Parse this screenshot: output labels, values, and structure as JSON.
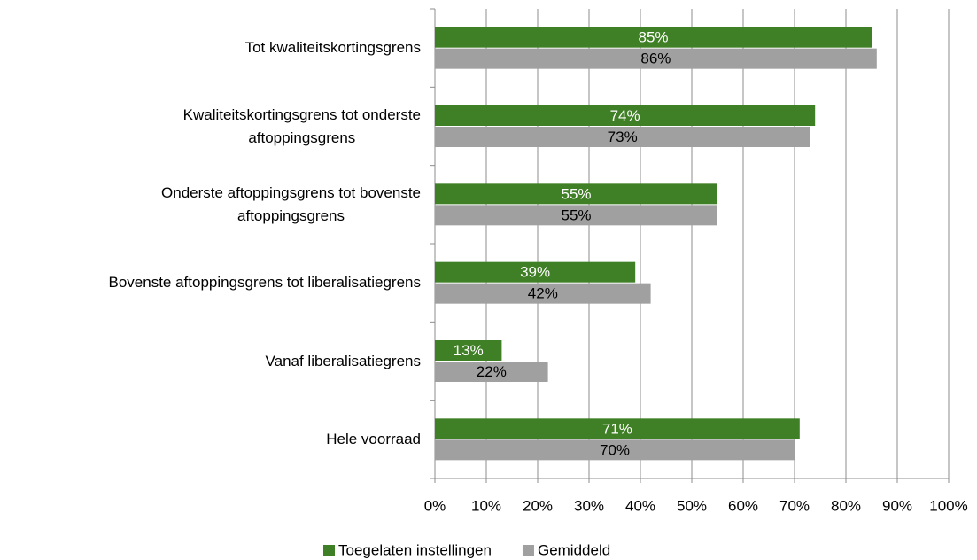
{
  "chart_data": {
    "type": "hbar",
    "categories": [
      "Tot kwaliteitskortingsgrens",
      "Kwaliteitskortingsgrens tot onderste\naftoppingsgrens",
      "Onderste aftoppingsgrens tot bovenste\naftoppingsgrens",
      "Bovenste aftoppingsgrens tot liberalisatiegrens",
      "Vanaf liberalisatiegrens",
      "Hele voorraad"
    ],
    "series": [
      {
        "name": "Toegelaten instellingen",
        "color": "#3f7f25",
        "label_color": "#ffffff",
        "values": [
          85,
          74,
          55,
          39,
          13,
          71
        ],
        "value_labels": [
          "85%",
          "74%",
          "55%",
          "39%",
          "13%",
          "71%"
        ]
      },
      {
        "name": "Gemiddeld",
        "color": "#a0a0a0",
        "label_color": "#000000",
        "values": [
          86,
          73,
          55,
          42,
          22,
          70
        ],
        "value_labels": [
          "86%",
          "73%",
          "55%",
          "42%",
          "22%",
          "70%"
        ]
      }
    ],
    "xlim": [
      0,
      100
    ],
    "xticks": [
      {
        "value": 0,
        "label": "0%"
      },
      {
        "value": 10,
        "label": "10%"
      },
      {
        "value": 20,
        "label": "20%"
      },
      {
        "value": 30,
        "label": "30%"
      },
      {
        "value": 40,
        "label": "40%"
      },
      {
        "value": 50,
        "label": "50%"
      },
      {
        "value": 60,
        "label": "60%"
      },
      {
        "value": 70,
        "label": "70%"
      },
      {
        "value": 80,
        "label": "80%"
      },
      {
        "value": 90,
        "label": "90%"
      },
      {
        "value": 100,
        "label": "100%"
      }
    ],
    "grid": true,
    "legend": "bottom"
  }
}
